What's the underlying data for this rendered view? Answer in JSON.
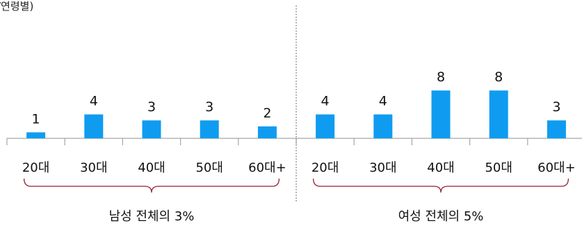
{
  "chart_data": {
    "type": "bar",
    "subtitle": "/연령별)",
    "ylim": [
      0,
      10
    ],
    "grid": false,
    "bar_color": "#0f9cf0",
    "axis_color": "#a6a6a6",
    "brace_color": "#9a1b2f",
    "divider_color": "#7f7f7f",
    "groups": [
      {
        "label": "남성 전체의 3%",
        "categories": [
          "20대",
          "30대",
          "40대",
          "50대",
          "60대+"
        ],
        "values": [
          1,
          4,
          3,
          3,
          2
        ]
      },
      {
        "label": "여성 전체의 5%",
        "categories": [
          "20대",
          "30대",
          "40대",
          "50대",
          "60대+"
        ],
        "values": [
          4,
          4,
          8,
          8,
          3
        ]
      }
    ]
  }
}
